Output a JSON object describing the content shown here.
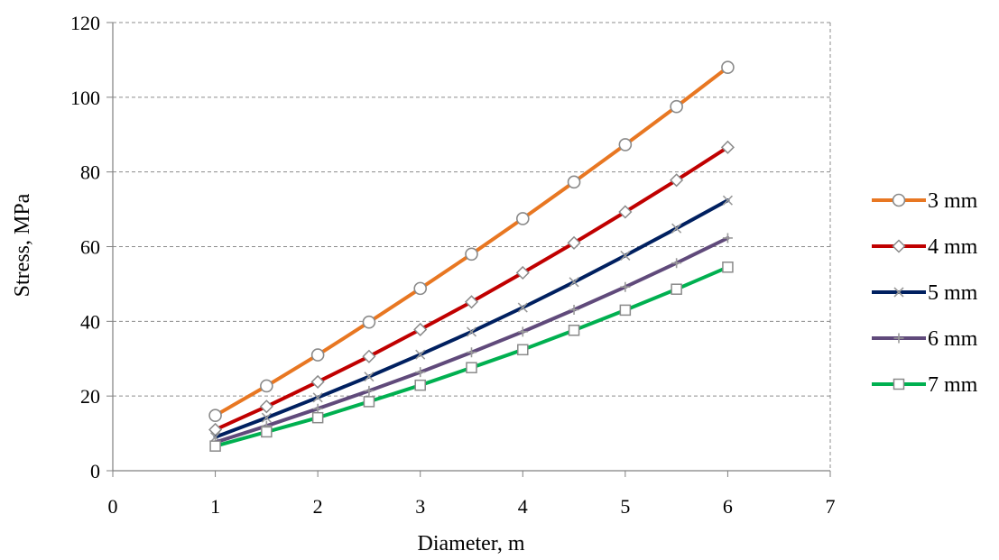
{
  "chart_data": {
    "type": "line",
    "title": "",
    "xlabel": "Diameter, m",
    "ylabel": "Stress, MPa",
    "xlim": [
      0,
      7
    ],
    "ylim": [
      0,
      120
    ],
    "xticks": [
      "0",
      "1",
      "2",
      "3",
      "4",
      "5",
      "6",
      "7"
    ],
    "yticks": [
      "0",
      "20",
      "40",
      "60",
      "80",
      "100",
      "120"
    ],
    "grid": "horizontal-dashed",
    "legend_position": "right",
    "x": [
      1,
      1.5,
      2,
      2.5,
      3,
      3.5,
      4,
      4.5,
      5,
      5.5,
      6
    ],
    "series": [
      {
        "name": "3 mm",
        "color": "#E87722",
        "marker": "circle",
        "values": [
          14.8,
          22.7,
          31.0,
          39.8,
          48.8,
          58.0,
          67.5,
          77.3,
          87.3,
          97.5,
          108.0
        ]
      },
      {
        "name": "4 mm",
        "color": "#C00000",
        "marker": "diamond",
        "values": [
          11.0,
          17.2,
          23.8,
          30.6,
          37.8,
          45.2,
          53.0,
          61.0,
          69.3,
          77.8,
          86.6
        ]
      },
      {
        "name": "5 mm",
        "color": "#002060",
        "marker": "x",
        "values": [
          9.0,
          14.2,
          19.6,
          25.2,
          31.1,
          37.2,
          43.7,
          50.5,
          57.6,
          64.9,
          72.4
        ]
      },
      {
        "name": "6 mm",
        "color": "#604A7B",
        "marker": "plus",
        "values": [
          7.6,
          12.0,
          16.6,
          21.4,
          26.4,
          31.7,
          37.2,
          43.1,
          49.2,
          55.6,
          62.3
        ]
      },
      {
        "name": "7 mm",
        "color": "#00B050",
        "marker": "square",
        "values": [
          6.6,
          10.4,
          14.2,
          18.5,
          22.9,
          27.6,
          32.4,
          37.6,
          43.0,
          48.6,
          54.5
        ]
      }
    ]
  }
}
